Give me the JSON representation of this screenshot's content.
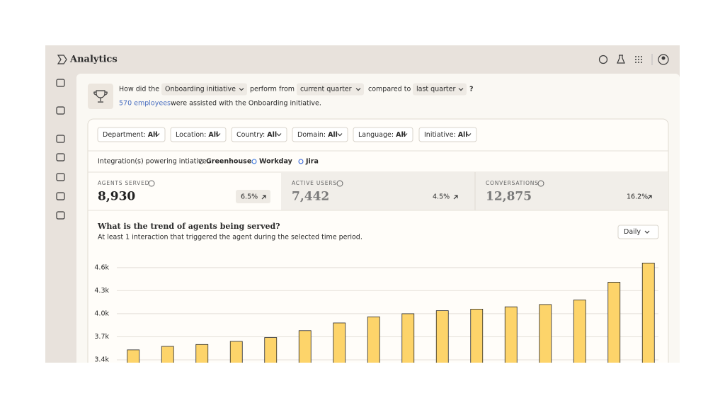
{
  "header": {
    "title": "Analytics"
  },
  "question": {
    "prefix": "How did the",
    "initiative": "Onboarding initiative",
    "verb": "perform from",
    "period": "current quarter",
    "compare": "compared to",
    "baseline": "last quarter",
    "end": "?"
  },
  "summary": {
    "count": "570 employees",
    "text": "were assisted with the Onboarding initiative."
  },
  "filters": [
    {
      "label": "Department:",
      "value": "All"
    },
    {
      "label": "Location:",
      "value": "All"
    },
    {
      "label": "Country:",
      "value": "All"
    },
    {
      "label": "Domain:",
      "value": "All"
    },
    {
      "label": "Language:",
      "value": "All"
    },
    {
      "label": "Initiative:",
      "value": "All"
    }
  ],
  "integrations": {
    "label": "Integration(s) powering intiative:",
    "items": [
      "Greenhouse",
      "Workday",
      "Jira"
    ]
  },
  "metrics": [
    {
      "label": "AGENTS SERVED",
      "value": "8,930",
      "change": "6.5%"
    },
    {
      "label": "ACTIVE USERS",
      "value": "7,442",
      "change": "4.5%"
    },
    {
      "label": "CONVERSATIONS",
      "value": "12,875",
      "change": "16.2%"
    }
  ],
  "chart_data": {
    "type": "bar",
    "title": "What is the trend of agents being served?",
    "subtitle": "At least 1 interaction that triggered the agent during the selected time period.",
    "granularity": "Daily",
    "values": [
      3530,
      3575,
      3600,
      3640,
      3690,
      3780,
      3880,
      3960,
      4000,
      4040,
      4060,
      4090,
      4120,
      4180,
      4410,
      4660
    ],
    "color": "#fdd46a",
    "ylim": [
      3400,
      4700
    ],
    "yticks": [
      {
        "value": 3400,
        "label": "3.4k"
      },
      {
        "value": 3700,
        "label": "3.7k"
      },
      {
        "value": 4000,
        "label": "4.0k"
      },
      {
        "value": 4300,
        "label": "4.3k"
      },
      {
        "value": 4600,
        "label": "4.6k"
      }
    ],
    "grid": true
  }
}
